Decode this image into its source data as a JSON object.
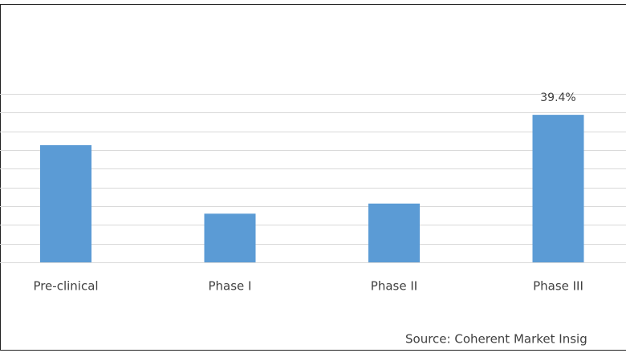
{
  "chart_data": {
    "type": "bar",
    "categories": [
      "Pre-clinical",
      "Phase I",
      "Phase II",
      "Phase III"
    ],
    "values": [
      31.3,
      13.0,
      15.7,
      39.4
    ],
    "value_labels": [
      null,
      null,
      null,
      "39.4%"
    ],
    "color": "#5b9bd5",
    "ylim": [
      0,
      45
    ],
    "yticks": [
      0,
      5,
      10,
      15,
      20,
      25,
      30,
      35,
      40,
      45
    ],
    "grid": true,
    "source": "Source: Coherent Market Insig"
  }
}
